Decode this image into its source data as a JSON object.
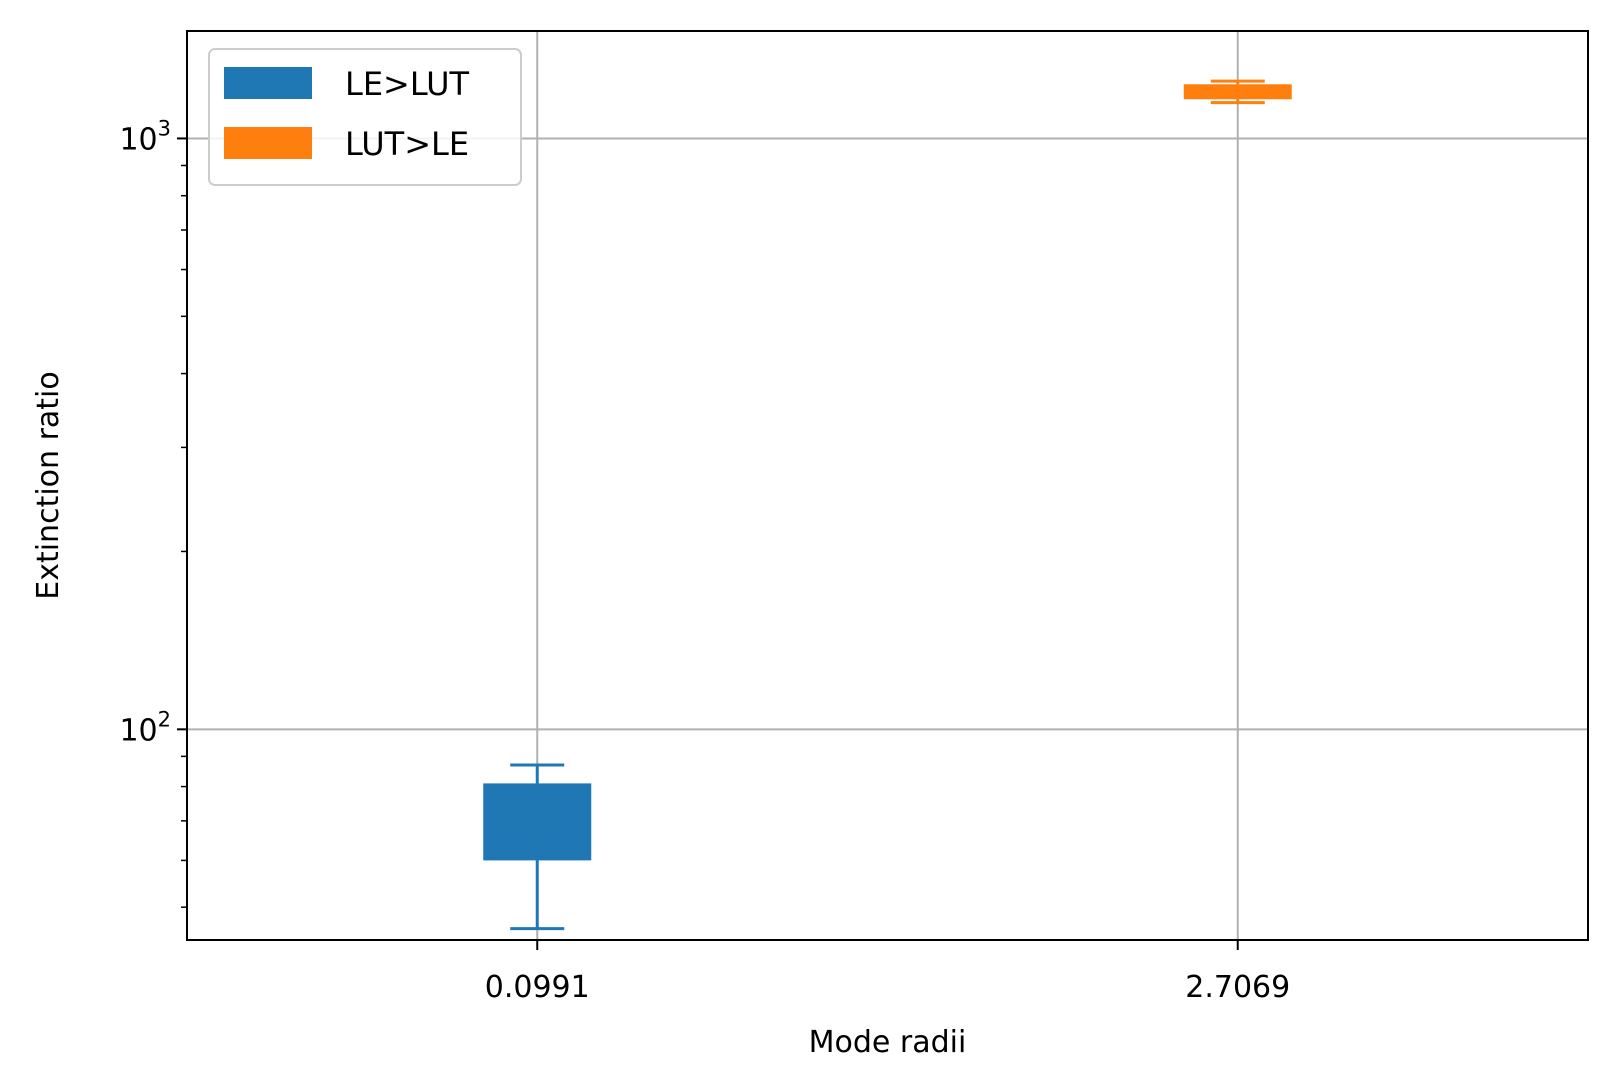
{
  "chart_data": {
    "type": "box",
    "xlabel": "Mode radii",
    "ylabel": "Extinction ratio",
    "yscale": "log",
    "ylim": [
      44,
      1520
    ],
    "categories": [
      "0.0991",
      "2.7069"
    ],
    "y_tick_labels": [
      {
        "value": 100,
        "base": "10",
        "exp": "2"
      },
      {
        "value": 1000,
        "base": "10",
        "exp": "3"
      }
    ],
    "series": [
      {
        "name": "LE>LUT",
        "color": "#1f77b4",
        "category_index": 0,
        "whisker_low": 46,
        "q1": 60,
        "q3": 81,
        "whisker_high": 87
      },
      {
        "name": "LUT>LE",
        "color": "#ff7f0e",
        "category_index": 1,
        "whisker_low": 1150,
        "q1": 1165,
        "q3": 1235,
        "whisker_high": 1250
      }
    ],
    "grid": true,
    "legend_position": "top-left"
  }
}
